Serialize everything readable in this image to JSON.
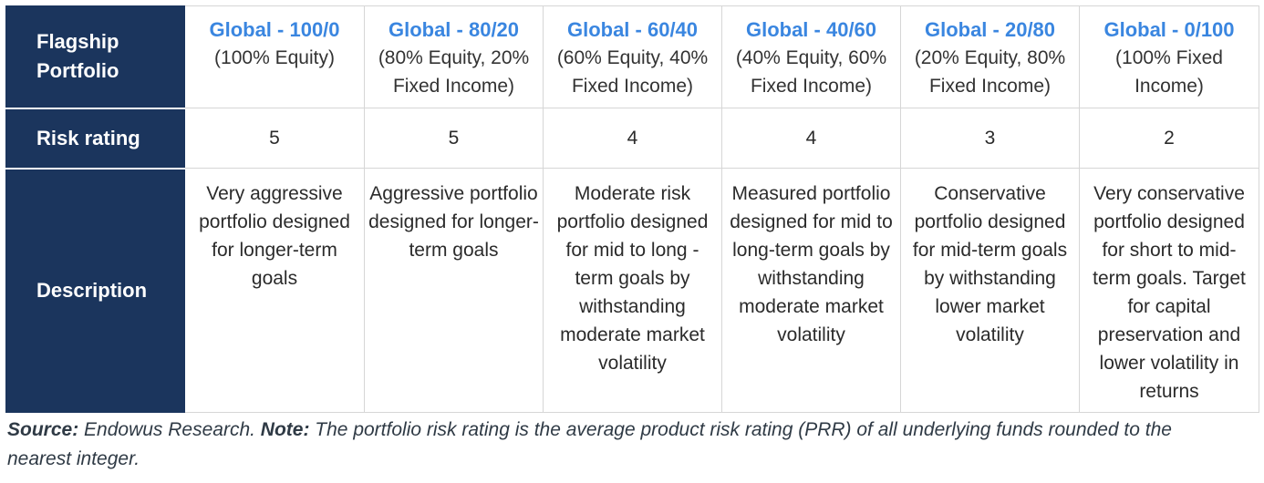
{
  "table": {
    "row_headers": {
      "portfolio": "Flagship Portfolio",
      "risk": "Risk rating",
      "description": "Description"
    },
    "columns": [
      {
        "title": "Global - 100/0",
        "subtitle": "(100% Equity)",
        "risk_rating": "5",
        "description": "Very aggressive portfolio designed for longer-term goals"
      },
      {
        "title": "Global - 80/20",
        "subtitle": "(80% Equity, 20% Fixed Income)",
        "risk_rating": "5",
        "description": "Aggressive portfolio designed for longer-term goals"
      },
      {
        "title": "Global - 60/40",
        "subtitle": "(60% Equity, 40% Fixed Income)",
        "risk_rating": "4",
        "description": "Moderate risk portfolio designed for mid to long -term goals by withstanding moderate market volatility"
      },
      {
        "title": "Global - 40/60",
        "subtitle": "(40% Equity, 60% Fixed Income)",
        "risk_rating": "4",
        "description": "Measured portfolio designed for mid to long-term goals by withstanding moderate market volatility"
      },
      {
        "title": "Global - 20/80",
        "subtitle": "(20% Equity, 80% Fixed Income)",
        "risk_rating": "3",
        "description": "Conservative portfolio designed for mid-term goals by withstanding lower market volatility"
      },
      {
        "title": "Global - 0/100",
        "subtitle": "(100% Fixed Income)",
        "risk_rating": "2",
        "description": "Very conservative portfolio designed for short to mid-term goals. Target for capital preservation and lower volatility  in returns"
      }
    ]
  },
  "footnote": {
    "source_label": "Source:",
    "source_text": " Endowus Research. ",
    "note_label": "Note:",
    "note_text": " The portfolio risk rating is the average product risk rating (PRR) of all underlying funds rounded to the nearest integer."
  },
  "colors": {
    "header_bg": "#1b355d",
    "title_blue": "#3a86e0"
  }
}
